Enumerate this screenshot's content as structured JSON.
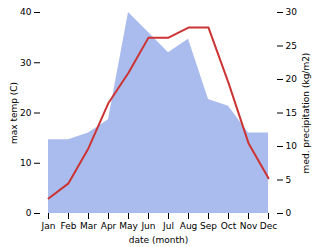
{
  "chart_data": {
    "type": "line",
    "xlabel": "date (month)",
    "ylabel": "max temp (C)",
    "y2label": "med. precipitation (kg/m2)",
    "categories": [
      "Jan",
      "Feb",
      "Mar",
      "Apr",
      "May",
      "Jun",
      "Jul",
      "Aug",
      "Sep",
      "Oct",
      "Nov",
      "Dec"
    ],
    "series": [
      {
        "type": "area",
        "axis": "y2",
        "color": "#aabbee",
        "values": [
          11,
          11,
          12,
          14,
          30,
          27,
          24,
          26,
          17,
          16,
          12,
          12
        ]
      },
      {
        "type": "line",
        "color": "#cc3333",
        "values": [
          3,
          6,
          13,
          22,
          28,
          35,
          35,
          37,
          37,
          26,
          14,
          7
        ]
      }
    ],
    "ylim": [
      0,
      40
    ],
    "yticks": [
      0,
      10,
      20,
      30,
      40
    ],
    "y2lim": [
      0,
      30
    ],
    "y2ticks": [
      0,
      5,
      10,
      15,
      20,
      25,
      30
    ]
  }
}
